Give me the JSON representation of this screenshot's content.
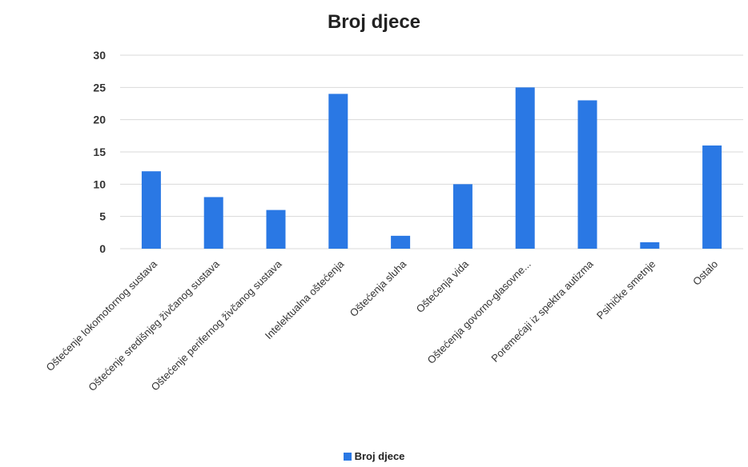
{
  "chart_data": {
    "type": "bar",
    "title": "Broj djece",
    "categories": [
      "Oštećenje lokomotornog sustava",
      "Oštećenje središnjeg živčanog sustava",
      "Oštećenje perifernog živčanog sustava",
      "Intelektualna oštećenja",
      "Oštećenja sluha",
      "Oštećenja vida",
      "Oštećenja govorno-glasovne...",
      "Poremećaji iz spektra autizma",
      "Psihičke smetnje",
      "Ostalo"
    ],
    "series": [
      {
        "name": "Broj djece",
        "values": [
          12,
          8,
          6,
          24,
          2,
          10,
          25,
          23,
          1,
          16
        ]
      }
    ],
    "ylim": [
      0,
      30
    ],
    "yticks": [
      0,
      5,
      10,
      15,
      20,
      25,
      30
    ],
    "grid": true,
    "legend_position": "bottom",
    "bar_color": "#2a78e4",
    "grid_color": "#d9d9d9"
  }
}
